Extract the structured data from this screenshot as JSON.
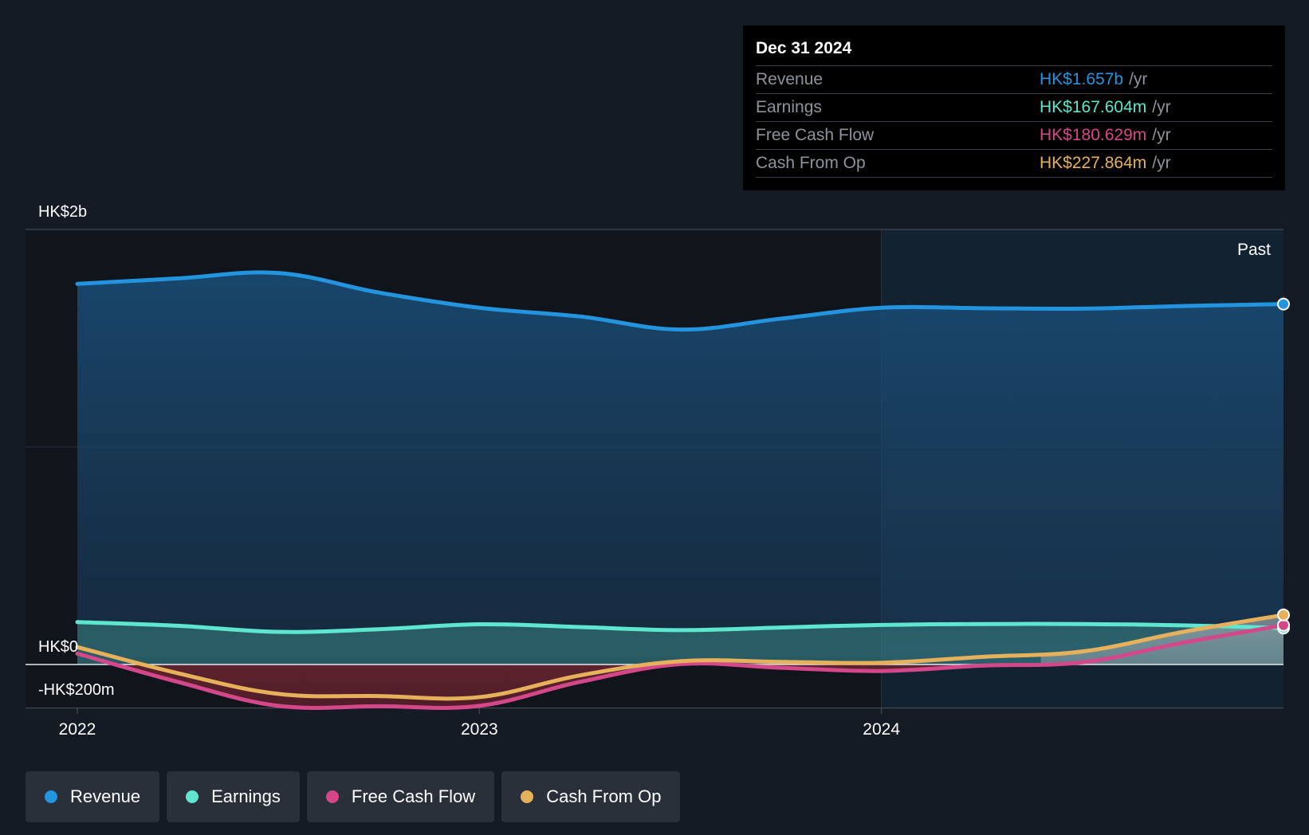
{
  "colors": {
    "background": "#151b24",
    "revenue": "#2394df",
    "earnings": "#5ee6d0",
    "free_cash_flow": "#d5478b",
    "cash_from_op": "#e7b15c"
  },
  "tooltip": {
    "date": "Dec 31 2024",
    "rows": [
      {
        "label": "Revenue",
        "value": "HK$1.657b",
        "unit": "/yr",
        "color": "#2394df"
      },
      {
        "label": "Earnings",
        "value": "HK$167.604m",
        "unit": "/yr",
        "color": "#5ee6d0"
      },
      {
        "label": "Free Cash Flow",
        "value": "HK$180.629m",
        "unit": "/yr",
        "color": "#d5478b"
      },
      {
        "label": "Cash From Op",
        "value": "HK$227.864m",
        "unit": "/yr",
        "color": "#e7b15c"
      }
    ]
  },
  "legend": [
    {
      "label": "Revenue",
      "color": "#2394df"
    },
    {
      "label": "Earnings",
      "color": "#5ee6d0"
    },
    {
      "label": "Free Cash Flow",
      "color": "#d5478b"
    },
    {
      "label": "Cash From Op",
      "color": "#e7b15c"
    }
  ],
  "chart_data": {
    "type": "area",
    "title": "",
    "xlabel": "",
    "ylabel": "",
    "unit": "HK$ millions",
    "past_label": "Past",
    "x_ticks": [
      {
        "label": "2022",
        "value": 2022.0
      },
      {
        "label": "2023",
        "value": 2023.0
      },
      {
        "label": "2024",
        "value": 2024.0
      }
    ],
    "y_ticks": [
      {
        "label": "HK$2b",
        "value": 2000
      },
      {
        "label": "HK$0",
        "value": 0
      },
      {
        "label": "-HK$200m",
        "value": -200
      }
    ],
    "xlim": [
      2021.87,
      2025.0
    ],
    "ylim": [
      -200,
      2000
    ],
    "grid": true,
    "past_region_start": 2024.0,
    "legend_position": "bottom-left",
    "series": [
      {
        "name": "Revenue",
        "key": "revenue",
        "x": [
          2022.0,
          2022.25,
          2022.5,
          2022.75,
          2023.0,
          2023.25,
          2023.5,
          2023.75,
          2024.0,
          2024.25,
          2024.5,
          2024.75,
          2025.0
        ],
        "y": [
          1750,
          1775,
          1800,
          1710,
          1640,
          1600,
          1540,
          1590,
          1640,
          1638,
          1636,
          1648,
          1657
        ]
      },
      {
        "name": "Earnings",
        "key": "earnings",
        "x": [
          2022.0,
          2022.25,
          2022.5,
          2022.75,
          2023.0,
          2023.25,
          2023.5,
          2023.75,
          2024.0,
          2024.25,
          2024.5,
          2024.75,
          2025.0
        ],
        "y": [
          195,
          178,
          150,
          162,
          185,
          172,
          158,
          170,
          182,
          186,
          186,
          180,
          167.6
        ]
      },
      {
        "name": "Free Cash Flow",
        "key": "free_cash_flow",
        "x": [
          2022.0,
          2022.25,
          2022.5,
          2022.75,
          2023.0,
          2023.25,
          2023.5,
          2023.75,
          2024.0,
          2024.25,
          2024.5,
          2024.75,
          2025.0
        ],
        "y": [
          50,
          -80,
          -190,
          -192,
          -190,
          -80,
          2,
          -15,
          -30,
          -5,
          10,
          100,
          180.6
        ]
      },
      {
        "name": "Cash From Op",
        "key": "cash_from_op",
        "x": [
          2022.0,
          2022.25,
          2022.5,
          2022.75,
          2023.0,
          2023.25,
          2023.5,
          2023.75,
          2024.0,
          2024.25,
          2024.5,
          2024.75,
          2025.0
        ],
        "y": [
          80,
          -40,
          -135,
          -145,
          -150,
          -50,
          15,
          12,
          8,
          35,
          60,
          150,
          227.9
        ]
      }
    ]
  }
}
